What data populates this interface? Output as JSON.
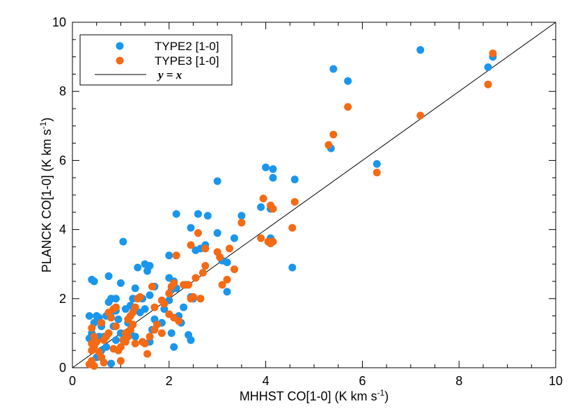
{
  "chart_data": {
    "type": "scatter",
    "xlabel": "MHHST CO[1-0] (K km s",
    "xlabel_sup": "-1",
    "xlabel_end": ")",
    "ylabel": "PLANCK CO[1-0] (K km s",
    "ylabel_sup": "-1",
    "ylabel_end": ")",
    "xlim": [
      0,
      10
    ],
    "ylim": [
      0,
      10
    ],
    "xticks": [
      0,
      2,
      4,
      6,
      8,
      10
    ],
    "yticks": [
      0,
      2,
      4,
      6,
      8,
      10
    ],
    "grid": false,
    "legend_position": "top-left",
    "reference_line": {
      "label": "y = x",
      "slope": 1,
      "intercept": 0,
      "color": "#000000"
    },
    "series": [
      {
        "name": "TYPE2 [1-0]",
        "color": "#1a96ec",
        "points": [
          [
            0.35,
            0.85
          ],
          [
            0.4,
            2.55
          ],
          [
            0.45,
            2.5
          ],
          [
            0.35,
            1.5
          ],
          [
            0.5,
            1.5
          ],
          [
            0.55,
            1.45
          ],
          [
            0.45,
            1.3
          ],
          [
            0.4,
            1.0
          ],
          [
            0.6,
            1.2
          ],
          [
            0.7,
            1.5
          ],
          [
            0.8,
            1.6
          ],
          [
            0.75,
            1.9
          ],
          [
            0.8,
            2.0
          ],
          [
            0.9,
            2.0
          ],
          [
            0.75,
            2.65
          ],
          [
            0.85,
            1.2
          ],
          [
            0.95,
            1.4
          ],
          [
            1.0,
            2.45
          ],
          [
            1.05,
            3.65
          ],
          [
            0.65,
            0.9
          ],
          [
            0.8,
            0.12
          ],
          [
            1.1,
            1.7
          ],
          [
            1.2,
            1.8
          ],
          [
            1.25,
            2.0
          ],
          [
            1.3,
            2.3
          ],
          [
            1.35,
            2.9
          ],
          [
            1.5,
            3.0
          ],
          [
            1.6,
            2.95
          ],
          [
            1.55,
            2.8
          ],
          [
            1.45,
            2.0
          ],
          [
            1.6,
            2.1
          ],
          [
            1.7,
            2.35
          ],
          [
            1.4,
            1.6
          ],
          [
            1.5,
            1.7
          ],
          [
            1.7,
            1.4
          ],
          [
            1.65,
            1.1
          ],
          [
            1.6,
            0.75
          ],
          [
            1.85,
            1.3
          ],
          [
            1.9,
            1.7
          ],
          [
            2.0,
            1.95
          ],
          [
            2.05,
            2.25
          ],
          [
            2.0,
            2.6
          ],
          [
            2.1,
            2.5
          ],
          [
            2.15,
            2.3
          ],
          [
            2.0,
            3.25
          ],
          [
            2.15,
            4.45
          ],
          [
            2.2,
            1.5
          ],
          [
            2.25,
            1.3
          ],
          [
            2.05,
            1.0
          ],
          [
            2.1,
            0.6
          ],
          [
            2.3,
            1.75
          ],
          [
            2.35,
            2.4
          ],
          [
            2.45,
            2.05
          ],
          [
            2.5,
            2.0
          ],
          [
            2.4,
            0.95
          ],
          [
            2.45,
            0.8
          ],
          [
            2.45,
            4.05
          ],
          [
            2.6,
            4.45
          ],
          [
            2.55,
            3.4
          ],
          [
            2.65,
            3.45
          ],
          [
            2.75,
            3.55
          ],
          [
            2.8,
            4.4
          ],
          [
            3.0,
            3.9
          ],
          [
            3.0,
            5.4
          ],
          [
            3.1,
            3.1
          ],
          [
            3.2,
            3.05
          ],
          [
            3.2,
            2.2
          ],
          [
            3.35,
            3.75
          ],
          [
            3.5,
            4.4
          ],
          [
            3.9,
            4.65
          ],
          [
            4.0,
            5.8
          ],
          [
            4.1,
            4.6
          ],
          [
            4.15,
            5.75
          ],
          [
            4.15,
            5.5
          ],
          [
            4.1,
            3.7
          ],
          [
            4.1,
            3.75
          ],
          [
            4.55,
            2.9
          ],
          [
            4.6,
            5.45
          ],
          [
            5.35,
            6.35
          ],
          [
            5.4,
            8.65
          ],
          [
            5.7,
            8.3
          ],
          [
            6.3,
            5.9
          ],
          [
            7.2,
            9.2
          ],
          [
            8.6,
            8.7
          ],
          [
            8.7,
            9.0
          ],
          [
            0.5,
            0.3
          ],
          [
            0.6,
            0.5
          ],
          [
            0.7,
            0.6
          ],
          [
            0.9,
            0.8
          ],
          [
            1.0,
            1.0
          ],
          [
            1.15,
            1.3
          ],
          [
            1.3,
            0.9
          ],
          [
            0.55,
            0.9
          ],
          [
            0.9,
            1.65
          ],
          [
            1.2,
            1.0
          ]
        ]
      },
      {
        "name": "TYPE3 [1-0]",
        "color": "#f56a14",
        "points": [
          [
            0.35,
            0.1
          ],
          [
            0.4,
            0.2
          ],
          [
            0.45,
            0.05
          ],
          [
            0.4,
            0.5
          ],
          [
            0.45,
            0.6
          ],
          [
            0.4,
            0.7
          ],
          [
            0.45,
            0.9
          ],
          [
            0.4,
            1.15
          ],
          [
            0.5,
            0.75
          ],
          [
            0.55,
            0.45
          ],
          [
            0.6,
            0.3
          ],
          [
            0.6,
            1.3
          ],
          [
            0.65,
            0.8
          ],
          [
            0.7,
            0.9
          ],
          [
            0.75,
            1.0
          ],
          [
            0.75,
            1.6
          ],
          [
            0.8,
            1.45
          ],
          [
            0.85,
            1.7
          ],
          [
            0.9,
            1.75
          ],
          [
            0.9,
            1.2
          ],
          [
            0.95,
            0.5
          ],
          [
            1.0,
            0.6
          ],
          [
            1.05,
            0.8
          ],
          [
            1.1,
            0.75
          ],
          [
            1.15,
            0.9
          ],
          [
            1.2,
            1.1
          ],
          [
            1.15,
            1.4
          ],
          [
            1.2,
            1.5
          ],
          [
            1.25,
            1.6
          ],
          [
            1.3,
            1.75
          ],
          [
            1.35,
            2.0
          ],
          [
            1.4,
            2.05
          ],
          [
            1.3,
            0.7
          ],
          [
            1.45,
            0.75
          ],
          [
            1.5,
            0.7
          ],
          [
            1.55,
            0.4
          ],
          [
            1.6,
            0.9
          ],
          [
            1.7,
            1.1
          ],
          [
            1.75,
            1.25
          ],
          [
            1.85,
            1.0
          ],
          [
            1.65,
            2.35
          ],
          [
            1.7,
            1.75
          ],
          [
            1.85,
            1.95
          ],
          [
            1.9,
            1.85
          ],
          [
            2.0,
            2.15
          ],
          [
            2.05,
            2.35
          ],
          [
            2.1,
            2.45
          ],
          [
            2.0,
            1.55
          ],
          [
            2.1,
            1.45
          ],
          [
            2.2,
            1.35
          ],
          [
            2.15,
            3.25
          ],
          [
            2.3,
            2.4
          ],
          [
            2.4,
            2.4
          ],
          [
            2.45,
            2.0
          ],
          [
            2.5,
            2.05
          ],
          [
            2.55,
            2.6
          ],
          [
            2.45,
            3.55
          ],
          [
            2.6,
            3.9
          ],
          [
            2.65,
            2.0
          ],
          [
            2.7,
            2.75
          ],
          [
            2.75,
            2.95
          ],
          [
            2.75,
            3.45
          ],
          [
            3.0,
            3.35
          ],
          [
            3.05,
            3.2
          ],
          [
            3.1,
            2.4
          ],
          [
            3.2,
            2.55
          ],
          [
            3.25,
            3.45
          ],
          [
            3.35,
            2.85
          ],
          [
            3.5,
            4.2
          ],
          [
            3.9,
            3.75
          ],
          [
            3.95,
            4.9
          ],
          [
            4.05,
            3.65
          ],
          [
            4.1,
            3.6
          ],
          [
            4.15,
            4.6
          ],
          [
            4.1,
            4.7
          ],
          [
            4.15,
            3.65
          ],
          [
            4.55,
            4.05
          ],
          [
            4.6,
            4.8
          ],
          [
            5.3,
            6.45
          ],
          [
            5.4,
            6.75
          ],
          [
            5.7,
            7.55
          ],
          [
            6.3,
            5.65
          ],
          [
            7.2,
            7.3
          ],
          [
            8.6,
            8.2
          ],
          [
            8.7,
            9.1
          ],
          [
            1.0,
            0.2
          ],
          [
            0.65,
            0.15
          ],
          [
            1.1,
            1.0
          ],
          [
            0.85,
            0.55
          ],
          [
            1.25,
            1.25
          ]
        ]
      }
    ]
  }
}
